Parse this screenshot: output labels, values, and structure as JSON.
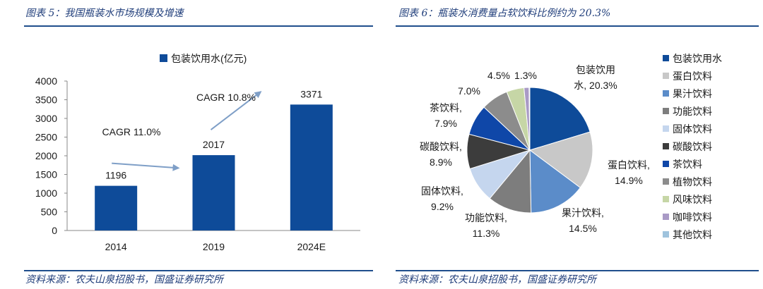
{
  "charts": [
    {
      "title": "图表 5：我国瓶装水市场规模及增速",
      "source": "资料来源：农夫山泉招股书，国盛证券研究所"
    },
    {
      "title": "图表 6：瓶装水消费量占软饮料比例约为 20.3%",
      "source": "资料来源：农夫山泉招股书，国盛证券研究所"
    }
  ],
  "chart_data": [
    {
      "type": "bar",
      "categories": [
        "2014",
        "2019",
        "2024E"
      ],
      "series": [
        {
          "name": "包装饮用水(亿元)",
          "values": [
            1196,
            2017,
            3371
          ]
        }
      ],
      "xlabel": "",
      "ylabel": "",
      "ylim": [
        0,
        4000
      ],
      "yticks": [
        0,
        500,
        1000,
        1500,
        2000,
        2500,
        3000,
        3500,
        4000
      ],
      "grid": false,
      "legend_position": "top",
      "color": "#0e4b99",
      "annotations": [
        {
          "text": "CAGR 11.0%",
          "from": "2014",
          "to": "2019"
        },
        {
          "text": "CAGR 10.8%",
          "from": "2019",
          "to": "2024E"
        }
      ]
    },
    {
      "type": "pie",
      "legend_position": "right",
      "slices": [
        {
          "label": "包装饮用水",
          "value": 20.3,
          "pct": "20.3%",
          "color": "#0e4b99"
        },
        {
          "label": "蛋白饮料",
          "value": 14.9,
          "pct": "14.9%",
          "color": "#c8c8c8"
        },
        {
          "label": "果汁饮料",
          "value": 14.5,
          "pct": "14.5%",
          "color": "#5b8cc9"
        },
        {
          "label": "功能饮料",
          "value": 11.3,
          "pct": "11.3%",
          "color": "#7d7d7d"
        },
        {
          "label": "固体饮料",
          "value": 9.2,
          "pct": "9.2%",
          "color": "#c5d6ee"
        },
        {
          "label": "碳酸饮料",
          "value": 8.9,
          "pct": "8.9%",
          "color": "#3c3c3c"
        },
        {
          "label": "茶饮料",
          "value": 7.9,
          "pct": "7.9%",
          "color": "#0f47a8"
        },
        {
          "label": "植物饮料",
          "value": 7.0,
          "pct": "7.0%",
          "color": "#8c8c8c"
        },
        {
          "label": "风味饮料",
          "value": 4.5,
          "pct": "4.5%",
          "color": "#c6d6a6"
        },
        {
          "label": "咖啡饮料",
          "value": 1.3,
          "pct": "1.3%",
          "color": "#a99ac6"
        },
        {
          "label": "其他饮料",
          "value": 0.2,
          "pct": "",
          "color": "#9fc3dd"
        }
      ]
    }
  ]
}
